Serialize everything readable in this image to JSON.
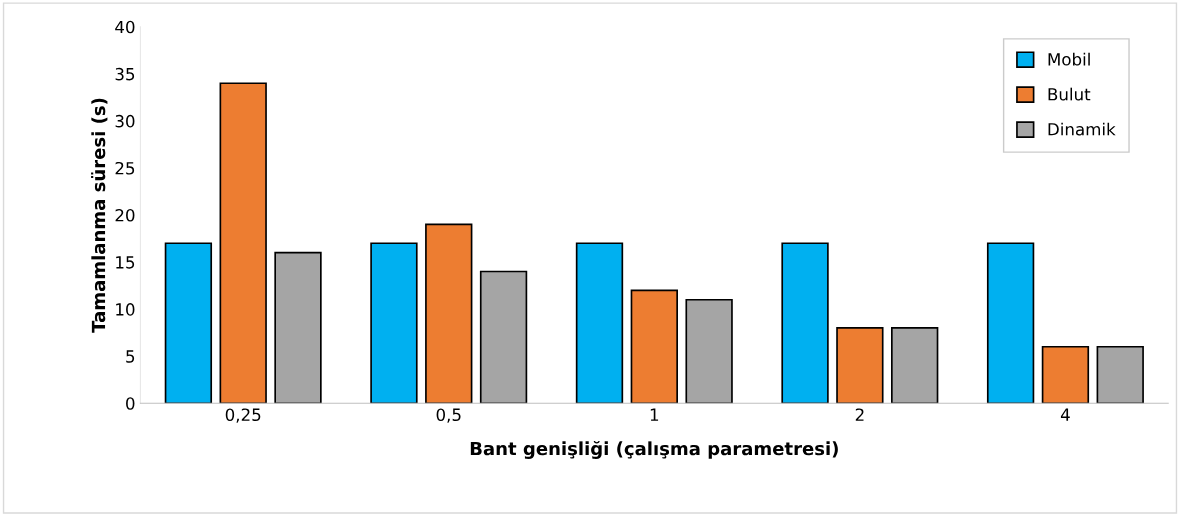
{
  "chart_data": {
    "type": "bar",
    "xlabel": "Bant genişliği (çalışma parametresi)",
    "ylabel": "Tamamlanma süresi (s)",
    "categories": [
      "0,25",
      "0,5",
      "1",
      "2",
      "4"
    ],
    "series": [
      {
        "name": "Mobil",
        "color": "#00b0f0",
        "values": [
          17,
          17,
          17,
          17,
          17
        ]
      },
      {
        "name": "Bulut",
        "color": "#ed7d31",
        "values": [
          34,
          19,
          12,
          8,
          6
        ]
      },
      {
        "name": "Dinamik",
        "color": "#a5a5a5",
        "values": [
          16,
          14,
          11,
          8,
          6
        ]
      }
    ],
    "ylim": [
      0,
      40
    ],
    "yticks": [
      0,
      5,
      10,
      15,
      20,
      25,
      30,
      35,
      40
    ],
    "grid": false,
    "legend": "top right"
  }
}
